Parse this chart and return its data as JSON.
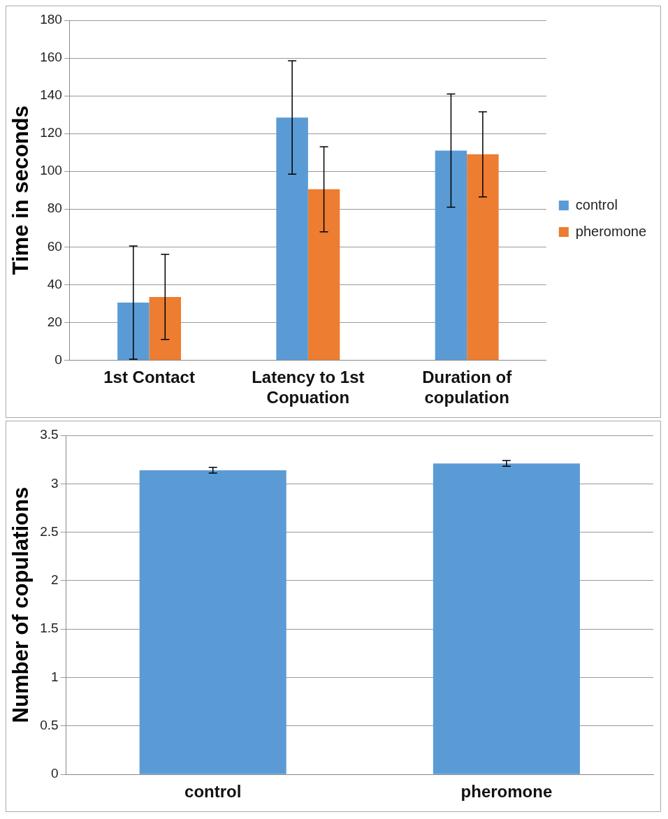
{
  "chart_data": [
    {
      "type": "bar",
      "ylabel": "Time in seconds",
      "categories": [
        "1st Contact",
        "Latency to 1st Copuation",
        "Duration of copulation"
      ],
      "series": [
        {
          "name": "control",
          "color": "#5b9bd5",
          "values": [
            30.5,
            128.5,
            111
          ],
          "errors": [
            30,
            30,
            30
          ]
        },
        {
          "name": "pheromone",
          "color": "#ed7d31",
          "values": [
            33.5,
            90.5,
            109
          ],
          "errors": [
            22.5,
            22.5,
            22.5
          ]
        }
      ],
      "ylim": [
        0,
        180
      ],
      "yticks": [
        0,
        20,
        40,
        60,
        80,
        100,
        120,
        140,
        160,
        180
      ],
      "grid": "y",
      "legend": "right"
    },
    {
      "type": "bar",
      "ylabel": "Number of copulations",
      "categories": [
        "control",
        "pheromone"
      ],
      "series": [
        {
          "color": "#5b9bd5",
          "values": [
            3.14,
            3.21
          ],
          "errors": [
            0.03,
            0.03
          ]
        }
      ],
      "ylim": [
        0,
        3.5
      ],
      "yticks": [
        0,
        0.5,
        1,
        1.5,
        2,
        2.5,
        3,
        3.5
      ],
      "grid": "y",
      "legend": false
    }
  ]
}
